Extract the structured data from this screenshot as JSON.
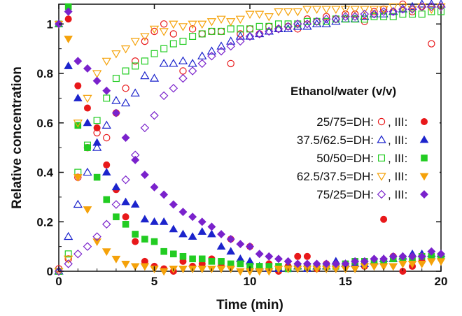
{
  "chart_data": {
    "type": "scatter",
    "xlabel": "Time (min)",
    "ylabel": "Relative concentration",
    "xlim": [
      0,
      20
    ],
    "ylim": [
      0,
      1.08
    ],
    "xticks": [
      0,
      5,
      10,
      15,
      20
    ],
    "yticks": [
      0,
      0.2,
      0.4,
      0.6,
      0.8,
      1
    ],
    "grid": false,
    "legend": {
      "position": "right",
      "title": "Ethanol/water (v/v)",
      "entries": [
        {
          "ratio": "25/75",
          "dh_label": "=DH:",
          "iii_label": ", III:",
          "color": "#e8181a"
        },
        {
          "ratio": "37.5/62.5",
          "dh_label": "=DH:",
          "iii_label": ", III:",
          "color": "#1c24cc"
        },
        {
          "ratio": "50/50",
          "dh_label": "=DH:",
          "iii_label": ", III:",
          "color": "#22cc22"
        },
        {
          "ratio": "62.5/37.5",
          "dh_label": "=DH:",
          "iii_label": ", III:",
          "color": "#f5a20a"
        },
        {
          "ratio": "75/25",
          "dh_label": "=DH:",
          "iii_label": ", III:",
          "color": "#7a22cc"
        }
      ]
    },
    "series": [
      {
        "group": "25/75",
        "form": "DH",
        "marker": "circle-open",
        "color": "#e8181a",
        "x": [
          0,
          0.5,
          1,
          1.5,
          2,
          2.5,
          3,
          3.5,
          4,
          4.5,
          5,
          5.5,
          6,
          6.5,
          7,
          7.5,
          8,
          8.5,
          9,
          9.5,
          10,
          10.5,
          11,
          11.5,
          12,
          12.5,
          13,
          13.5,
          14,
          14.5,
          15,
          15.5,
          16,
          16.5,
          17,
          17.5,
          18,
          18.5,
          19,
          19.5
        ],
        "y": [
          0.01,
          0.05,
          0.38,
          0.5,
          0.56,
          0.54,
          0.64,
          0.74,
          0.85,
          0.93,
          0.97,
          1.0,
          0.96,
          0.81,
          0.98,
          0.96,
          0.97,
          0.97,
          0.84,
          0.96,
          0.98,
          0.96,
          0.99,
          0.98,
          0.99,
          0.98,
          1.02,
          1.01,
          1.03,
          1.02,
          1.04,
          1.04,
          1.01,
          1.05,
          1.06,
          1.05,
          1.08,
          1.05,
          1.07,
          0.92
        ]
      },
      {
        "group": "25/75",
        "form": "III",
        "marker": "circle-filled",
        "color": "#e8181a",
        "x": [
          0,
          0.5,
          1,
          1.5,
          2,
          2.5,
          3,
          3.5,
          4,
          4.5,
          5,
          5.5,
          6,
          6.5,
          7,
          7.5,
          8,
          8.5,
          9,
          9.5,
          10,
          10.5,
          11,
          11.5,
          12,
          12.5,
          13,
          13.5,
          14,
          14.5,
          15,
          15.5,
          16,
          16.5,
          17,
          17.5,
          18,
          18.5,
          19,
          19.5,
          20
        ],
        "y": [
          1.0,
          1.02,
          0.75,
          0.66,
          0.58,
          0.43,
          0.33,
          0.22,
          0.12,
          0.04,
          0.02,
          0.01,
          0.0,
          0.04,
          0.02,
          0.03,
          0.05,
          0.02,
          0.13,
          0.04,
          0.1,
          0.01,
          0.03,
          0.0,
          0.02,
          0.06,
          0.06,
          0.01,
          0.03,
          0.02,
          0.02,
          0.03,
          0.02,
          0.03,
          0.21,
          0.06,
          0.0,
          0.02,
          0.04,
          0.06,
          0.06
        ]
      },
      {
        "group": "37.5/62.5",
        "form": "DH",
        "marker": "triangle-open",
        "color": "#1c24cc",
        "x": [
          0,
          0.5,
          1,
          1.5,
          2,
          2.5,
          3,
          3.5,
          4,
          4.5,
          5,
          5.5,
          6,
          6.5,
          7,
          7.5,
          8,
          8.5,
          9,
          9.5,
          10,
          10.5,
          11,
          11.5,
          12,
          12.5,
          13,
          13.5,
          14,
          14.5,
          15,
          15.5,
          16,
          16.5,
          17,
          17.5,
          18,
          18.5,
          19,
          19.5,
          20
        ],
        "y": [
          0.0,
          0.14,
          0.27,
          0.4,
          0.5,
          0.59,
          0.69,
          0.68,
          0.72,
          0.79,
          0.78,
          0.84,
          0.84,
          0.85,
          0.84,
          0.87,
          0.89,
          0.91,
          0.93,
          0.95,
          0.95,
          0.96,
          0.97,
          0.98,
          0.98,
          0.99,
          0.99,
          1.0,
          1.0,
          1.01,
          1.02,
          1.02,
          1.03,
          1.04,
          1.04,
          1.05,
          1.06,
          1.07,
          1.08,
          1.08,
          1.08
        ]
      },
      {
        "group": "37.5/62.5",
        "form": "III",
        "marker": "triangle-filled",
        "color": "#1c24cc",
        "x": [
          0,
          0.5,
          1,
          1.5,
          2,
          2.5,
          3,
          3.5,
          4,
          4.5,
          5,
          5.5,
          6,
          6.5,
          7,
          7.5,
          8,
          8.5,
          9,
          9.5,
          10,
          10.5,
          11,
          11.5,
          12,
          12.5,
          13,
          13.5,
          14,
          14.5,
          15,
          15.5,
          16,
          16.5,
          17,
          17.5,
          18,
          18.5,
          19,
          19.5,
          20
        ],
        "y": [
          1.0,
          0.83,
          0.7,
          0.6,
          0.52,
          0.4,
          0.34,
          0.28,
          0.27,
          0.21,
          0.2,
          0.2,
          0.17,
          0.15,
          0.14,
          0.16,
          0.15,
          0.1,
          0.08,
          0.05,
          0.04,
          0.02,
          0.01,
          0.01,
          0.01,
          0.02,
          0.01,
          0.02,
          0.02,
          0.04,
          0.03,
          0.03,
          0.03,
          0.04,
          0.05,
          0.05,
          0.06,
          0.07,
          0.07,
          0.07,
          0.07
        ]
      },
      {
        "group": "50/50",
        "form": "DH",
        "marker": "square-open",
        "color": "#22cc22",
        "x": [
          0,
          0.5,
          1,
          1.5,
          2,
          2.5,
          3,
          3.5,
          4,
          4.5,
          5,
          5.5,
          6,
          6.5,
          7,
          7.5,
          8,
          8.5,
          9,
          9.5,
          10,
          10.5,
          11,
          11.5,
          12,
          12.5,
          13,
          13.5,
          14,
          14.5,
          15,
          15.5,
          16,
          16.5,
          17,
          17.5,
          18,
          18.5,
          19,
          19.5,
          20
        ],
        "y": [
          0.0,
          0.07,
          0.4,
          0.51,
          0.61,
          0.7,
          0.78,
          0.81,
          0.83,
          0.85,
          0.88,
          0.9,
          0.92,
          0.93,
          0.95,
          0.96,
          0.97,
          0.97,
          0.98,
          0.98,
          0.98,
          0.99,
          0.99,
          1.0,
          1.0,
          1.0,
          1.01,
          1.01,
          1.01,
          1.02,
          1.02,
          1.02,
          1.02,
          1.03,
          1.03,
          1.03,
          1.04,
          1.04,
          1.04,
          1.05,
          1.05
        ]
      },
      {
        "group": "50/50",
        "form": "III",
        "marker": "square-filled",
        "color": "#22cc22",
        "x": [
          0,
          0.5,
          1,
          1.5,
          2,
          2.5,
          3,
          3.5,
          4,
          4.5,
          5,
          5.5,
          6,
          6.5,
          7,
          7.5,
          8,
          8.5,
          9,
          9.5,
          10,
          10.5,
          11,
          11.5,
          12,
          12.5,
          13,
          13.5,
          14,
          14.5,
          15,
          15.5,
          16,
          16.5,
          17,
          17.5,
          18,
          18.5,
          19,
          19.5,
          20
        ],
        "y": [
          1.0,
          1.07,
          0.59,
          0.5,
          0.38,
          0.29,
          0.22,
          0.19,
          0.15,
          0.13,
          0.12,
          0.08,
          0.07,
          0.06,
          0.05,
          0.05,
          0.04,
          0.04,
          0.03,
          0.03,
          0.02,
          0.02,
          0.02,
          0.02,
          0.01,
          0.02,
          0.02,
          0.02,
          0.02,
          0.02,
          0.03,
          0.04,
          0.04,
          0.04,
          0.04,
          0.05,
          0.05,
          0.05,
          0.06,
          0.06,
          0.06
        ]
      },
      {
        "group": "62.5/37.5",
        "form": "DH",
        "marker": "triangle-down-open",
        "color": "#f5a20a",
        "x": [
          0,
          0.5,
          1,
          1.5,
          2,
          2.5,
          3,
          3.5,
          4,
          4.5,
          5,
          5.5,
          6,
          6.5,
          7,
          7.5,
          8,
          8.5,
          9,
          9.5,
          10,
          10.5,
          11,
          11.5,
          12,
          12.5,
          13,
          13.5,
          14,
          14.5,
          15,
          15.5,
          16,
          16.5,
          17,
          17.5,
          18,
          18.5,
          19,
          19.5,
          20
        ],
        "y": [
          0.0,
          0.05,
          0.6,
          0.7,
          0.8,
          0.85,
          0.88,
          0.9,
          0.93,
          0.95,
          0.98,
          0.97,
          1.0,
          0.99,
          1.0,
          1.0,
          1.01,
          1.02,
          1.01,
          1.02,
          1.04,
          1.04,
          1.03,
          1.05,
          1.05,
          1.05,
          1.06,
          1.06,
          1.06,
          1.06,
          1.06,
          1.06,
          1.06,
          1.06,
          1.06,
          1.07,
          1.07,
          1.06,
          1.07,
          1.06,
          1.07
        ]
      },
      {
        "group": "62.5/37.5",
        "form": "III",
        "marker": "triangle-down-filled",
        "color": "#f5a20a",
        "x": [
          0,
          0.5,
          1,
          1.5,
          2,
          2.5,
          3,
          3.5,
          4,
          4.5,
          5,
          5.5,
          6,
          6.5,
          7,
          7.5,
          8,
          8.5,
          9,
          9.5,
          10,
          10.5,
          11,
          11.5,
          12,
          12.5,
          13,
          13.5,
          14,
          14.5,
          15,
          15.5,
          16,
          16.5,
          17,
          17.5,
          18,
          18.5,
          19,
          19.5,
          20
        ],
        "y": [
          1.0,
          0.94,
          0.38,
          0.25,
          0.12,
          0.08,
          0.05,
          0.03,
          0.02,
          0.02,
          0.01,
          0.0,
          0.01,
          0.01,
          0.01,
          0.01,
          0.01,
          0.01,
          0.01,
          0.0,
          0.0,
          0.0,
          0.0,
          0.01,
          0.01,
          0.01,
          0.01,
          0.01,
          0.01,
          0.01,
          0.01,
          0.01,
          0.02,
          0.02,
          0.02,
          0.02,
          0.03,
          0.03,
          0.03,
          0.04,
          0.04
        ]
      },
      {
        "group": "75/25",
        "form": "DH",
        "marker": "diamond-open",
        "color": "#7a22cc",
        "x": [
          0,
          0.5,
          1,
          1.5,
          2,
          2.5,
          3,
          3.5,
          4,
          4.5,
          5,
          5.5,
          6,
          6.5,
          7,
          7.5,
          8,
          8.5,
          9,
          9.5,
          10,
          10.5,
          11,
          11.5,
          12,
          12.5,
          13,
          13.5,
          14,
          14.5,
          15,
          15.5,
          16,
          16.5,
          17,
          17.5,
          18,
          18.5,
          19,
          19.5,
          20
        ],
        "y": [
          0.0,
          0.03,
          0.07,
          0.1,
          0.14,
          0.19,
          0.27,
          0.37,
          0.47,
          0.58,
          0.63,
          0.71,
          0.74,
          0.78,
          0.81,
          0.84,
          0.87,
          0.89,
          0.91,
          0.93,
          0.95,
          0.96,
          0.97,
          0.98,
          0.99,
          1.0,
          1.0,
          1.01,
          1.02,
          1.02,
          1.03,
          1.03,
          1.04,
          1.04,
          1.05,
          1.05,
          1.06,
          1.06,
          1.07,
          1.07,
          1.07
        ]
      },
      {
        "group": "75/25",
        "form": "III",
        "marker": "diamond-filled",
        "color": "#7a22cc",
        "x": [
          0,
          0.5,
          1,
          1.5,
          2,
          2.5,
          3,
          3.5,
          4,
          4.5,
          5,
          5.5,
          6,
          6.5,
          7,
          7.5,
          8,
          8.5,
          9,
          9.5,
          10,
          10.5,
          11,
          11.5,
          12,
          12.5,
          13,
          13.5,
          14,
          14.5,
          15,
          15.5,
          16,
          16.5,
          17,
          17.5,
          18,
          18.5,
          19,
          19.5,
          20
        ],
        "y": [
          1.0,
          1.05,
          0.85,
          0.82,
          0.77,
          0.73,
          0.64,
          0.54,
          0.45,
          0.39,
          0.34,
          0.31,
          0.27,
          0.24,
          0.22,
          0.2,
          0.18,
          0.15,
          0.13,
          0.11,
          0.1,
          0.07,
          0.06,
          0.05,
          0.04,
          0.03,
          0.03,
          0.03,
          0.03,
          0.03,
          0.03,
          0.04,
          0.04,
          0.05,
          0.05,
          0.06,
          0.06,
          0.06,
          0.06,
          0.08,
          0.07
        ]
      }
    ]
  }
}
